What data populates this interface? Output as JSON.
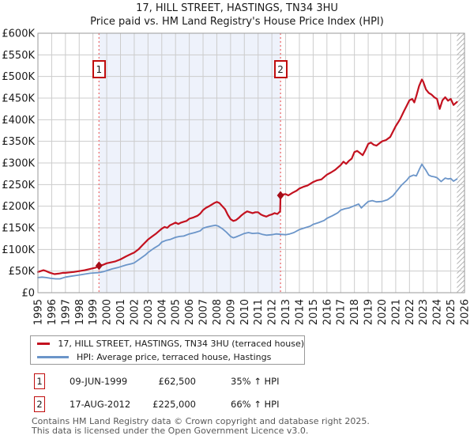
{
  "title": "17, HILL STREET, HASTINGS, TN34 3HU",
  "subtitle": "Price paid vs. HM Land Registry's House Price Index (HPI)",
  "legend": [
    {
      "label": "17, HILL STREET, HASTINGS, TN34 3HU (terraced house)",
      "color": "#c3111f"
    },
    {
      "label": "HPI: Average price, terraced house, Hastings",
      "color": "#6b95c9"
    }
  ],
  "transactions": [
    {
      "marker": "1",
      "date": "09-JUN-1999",
      "price": "£62,500",
      "hpi": "35% ↑ HPI"
    },
    {
      "marker": "2",
      "date": "17-AUG-2012",
      "price": "£225,000",
      "hpi": "66% ↑ HPI"
    }
  ],
  "footer": {
    "line1": "Contains HM Land Registry data © Crown copyright and database right 2025.",
    "line2": "This data is licensed under the Open Government Licence v3.0."
  },
  "chart_data": {
    "type": "line",
    "title": "17, HILL STREET, HASTINGS, TN34 3HU — Price paid vs. HPI",
    "x_range": [
      1995,
      2026
    ],
    "y_range": [
      0,
      600000
    ],
    "grid": true,
    "legend_position": "bottom",
    "x_ticks": [
      1995,
      1996,
      1997,
      1998,
      1999,
      2000,
      2001,
      2002,
      2003,
      2004,
      2005,
      2006,
      2007,
      2008,
      2009,
      2010,
      2011,
      2012,
      2013,
      2014,
      2015,
      2016,
      2017,
      2018,
      2019,
      2020,
      2021,
      2022,
      2023,
      2024,
      2025,
      2026
    ],
    "y_ticks": [
      [
        0,
        "£0"
      ],
      [
        50000,
        "£50K"
      ],
      [
        100000,
        "£100K"
      ],
      [
        150000,
        "£150K"
      ],
      [
        200000,
        "£200K"
      ],
      [
        250000,
        "£250K"
      ],
      [
        300000,
        "£300K"
      ],
      [
        350000,
        "£350K"
      ],
      [
        400000,
        "£400K"
      ],
      [
        450000,
        "£450K"
      ],
      [
        500000,
        "£500K"
      ],
      [
        550000,
        "£550K"
      ],
      [
        600000,
        "£600K"
      ]
    ],
    "shaded_span": [
      1999.44,
      2012.63
    ],
    "hatch_span": [
      2025.45,
      2026
    ],
    "colors": {
      "shade": "#eef2fb",
      "grid": "#cccccc",
      "border": "#9a9a9a",
      "dotted": "#f08080",
      "hatch": "#b5b5b5",
      "marker": "#a60d18"
    },
    "markers": [
      {
        "label": "1",
        "x": 1999.44,
        "y": 62500
      },
      {
        "label": "2",
        "x": 2012.63,
        "y": 225000
      }
    ],
    "series": [
      {
        "id": "price-paid-series",
        "name": "17, HILL STREET, HASTINGS, TN34 3HU (terraced house)",
        "color": "#c3111f",
        "width": 2.2,
        "points": [
          [
            1995.0,
            48000
          ],
          [
            1995.2,
            50000
          ],
          [
            1995.4,
            52000
          ],
          [
            1995.6,
            50000
          ],
          [
            1995.8,
            47000
          ],
          [
            1996.0,
            45000
          ],
          [
            1996.2,
            43000
          ],
          [
            1996.5,
            44000
          ],
          [
            1996.8,
            46000
          ],
          [
            1997.0,
            46000
          ],
          [
            1997.3,
            47000
          ],
          [
            1997.6,
            48000
          ],
          [
            1998.0,
            50000
          ],
          [
            1998.4,
            52000
          ],
          [
            1998.8,
            55000
          ],
          [
            1999.2,
            58000
          ],
          [
            1999.44,
            62500
          ],
          [
            1999.7,
            64000
          ],
          [
            2000.0,
            68000
          ],
          [
            2000.3,
            70000
          ],
          [
            2000.6,
            72000
          ],
          [
            2001.0,
            77000
          ],
          [
            2001.4,
            84000
          ],
          [
            2001.8,
            90000
          ],
          [
            2002.0,
            93000
          ],
          [
            2002.3,
            100000
          ],
          [
            2002.6,
            110000
          ],
          [
            2003.0,
            123000
          ],
          [
            2003.3,
            130000
          ],
          [
            2003.6,
            137000
          ],
          [
            2004.0,
            148000
          ],
          [
            2004.2,
            152000
          ],
          [
            2004.4,
            150000
          ],
          [
            2004.6,
            156000
          ],
          [
            2004.8,
            159000
          ],
          [
            2005.0,
            162000
          ],
          [
            2005.2,
            159000
          ],
          [
            2005.4,
            162000
          ],
          [
            2005.6,
            164000
          ],
          [
            2005.8,
            166000
          ],
          [
            2006.0,
            171000
          ],
          [
            2006.3,
            174000
          ],
          [
            2006.6,
            178000
          ],
          [
            2006.8,
            183000
          ],
          [
            2007.0,
            191000
          ],
          [
            2007.2,
            196000
          ],
          [
            2007.5,
            201000
          ],
          [
            2007.8,
            207000
          ],
          [
            2008.0,
            210000
          ],
          [
            2008.2,
            207000
          ],
          [
            2008.4,
            200000
          ],
          [
            2008.6,
            193000
          ],
          [
            2008.8,
            180000
          ],
          [
            2009.0,
            170000
          ],
          [
            2009.2,
            166000
          ],
          [
            2009.4,
            168000
          ],
          [
            2009.6,
            173000
          ],
          [
            2009.8,
            179000
          ],
          [
            2010.0,
            184000
          ],
          [
            2010.2,
            188000
          ],
          [
            2010.4,
            186000
          ],
          [
            2010.6,
            184000
          ],
          [
            2010.8,
            186000
          ],
          [
            2011.0,
            186000
          ],
          [
            2011.2,
            181000
          ],
          [
            2011.4,
            178000
          ],
          [
            2011.6,
            176000
          ],
          [
            2011.8,
            179000
          ],
          [
            2012.0,
            181000
          ],
          [
            2012.2,
            184000
          ],
          [
            2012.4,
            182000
          ],
          [
            2012.6,
            188000
          ],
          [
            2012.63,
            225000
          ],
          [
            2012.8,
            227000
          ],
          [
            2013.0,
            228000
          ],
          [
            2013.2,
            225000
          ],
          [
            2013.5,
            231000
          ],
          [
            2013.8,
            236000
          ],
          [
            2014.0,
            241000
          ],
          [
            2014.3,
            245000
          ],
          [
            2014.6,
            248000
          ],
          [
            2015.0,
            256000
          ],
          [
            2015.3,
            260000
          ],
          [
            2015.6,
            262000
          ],
          [
            2016.0,
            273000
          ],
          [
            2016.3,
            278000
          ],
          [
            2016.6,
            284000
          ],
          [
            2017.0,
            295000
          ],
          [
            2017.2,
            303000
          ],
          [
            2017.4,
            298000
          ],
          [
            2017.6,
            305000
          ],
          [
            2017.8,
            310000
          ],
          [
            2018.0,
            325000
          ],
          [
            2018.2,
            328000
          ],
          [
            2018.4,
            323000
          ],
          [
            2018.6,
            318000
          ],
          [
            2018.8,
            330000
          ],
          [
            2019.0,
            344000
          ],
          [
            2019.2,
            347000
          ],
          [
            2019.4,
            342000
          ],
          [
            2019.6,
            340000
          ],
          [
            2019.8,
            345000
          ],
          [
            2020.0,
            350000
          ],
          [
            2020.3,
            353000
          ],
          [
            2020.6,
            360000
          ],
          [
            2021.0,
            385000
          ],
          [
            2021.3,
            400000
          ],
          [
            2021.6,
            420000
          ],
          [
            2021.8,
            432000
          ],
          [
            2022.0,
            445000
          ],
          [
            2022.2,
            448000
          ],
          [
            2022.35,
            440000
          ],
          [
            2022.5,
            455000
          ],
          [
            2022.7,
            478000
          ],
          [
            2022.9,
            493000
          ],
          [
            2023.0,
            488000
          ],
          [
            2023.2,
            470000
          ],
          [
            2023.4,
            462000
          ],
          [
            2023.6,
            458000
          ],
          [
            2023.8,
            452000
          ],
          [
            2024.0,
            448000
          ],
          [
            2024.2,
            425000
          ],
          [
            2024.4,
            445000
          ],
          [
            2024.6,
            452000
          ],
          [
            2024.8,
            444000
          ],
          [
            2025.0,
            448000
          ],
          [
            2025.2,
            434000
          ],
          [
            2025.45,
            441000
          ]
        ]
      },
      {
        "id": "hpi-series",
        "name": "HPI: Average price, terraced house, Hastings",
        "color": "#6b95c9",
        "width": 1.8,
        "points": [
          [
            1995.0,
            35000
          ],
          [
            1995.3,
            36000
          ],
          [
            1995.6,
            35000
          ],
          [
            1996.0,
            33000
          ],
          [
            1996.3,
            32000
          ],
          [
            1996.6,
            32000
          ],
          [
            1997.0,
            36000
          ],
          [
            1997.4,
            38000
          ],
          [
            1997.8,
            40000
          ],
          [
            1998.0,
            41000
          ],
          [
            1998.4,
            43000
          ],
          [
            1998.8,
            45000
          ],
          [
            1999.2,
            46000
          ],
          [
            1999.44,
            46500
          ],
          [
            1999.8,
            49000
          ],
          [
            2000.0,
            51000
          ],
          [
            2000.4,
            55000
          ],
          [
            2000.8,
            58000
          ],
          [
            2001.0,
            60000
          ],
          [
            2001.4,
            64000
          ],
          [
            2001.8,
            67000
          ],
          [
            2002.0,
            69000
          ],
          [
            2002.4,
            78000
          ],
          [
            2002.8,
            87000
          ],
          [
            2003.0,
            93000
          ],
          [
            2003.4,
            102000
          ],
          [
            2003.8,
            110000
          ],
          [
            2004.0,
            117000
          ],
          [
            2004.3,
            121000
          ],
          [
            2004.6,
            123000
          ],
          [
            2005.0,
            128000
          ],
          [
            2005.3,
            130000
          ],
          [
            2005.6,
            131000
          ],
          [
            2006.0,
            136000
          ],
          [
            2006.4,
            139000
          ],
          [
            2006.8,
            143000
          ],
          [
            2007.0,
            149000
          ],
          [
            2007.3,
            152000
          ],
          [
            2007.6,
            154000
          ],
          [
            2007.9,
            156000
          ],
          [
            2008.1,
            154000
          ],
          [
            2008.4,
            148000
          ],
          [
            2008.7,
            140000
          ],
          [
            2009.0,
            130000
          ],
          [
            2009.2,
            127000
          ],
          [
            2009.4,
            129000
          ],
          [
            2009.7,
            133000
          ],
          [
            2010.0,
            137000
          ],
          [
            2010.3,
            139000
          ],
          [
            2010.6,
            137000
          ],
          [
            2011.0,
            138000
          ],
          [
            2011.3,
            135000
          ],
          [
            2011.6,
            133000
          ],
          [
            2012.0,
            134000
          ],
          [
            2012.3,
            136000
          ],
          [
            2012.63,
            135000
          ],
          [
            2013.0,
            134000
          ],
          [
            2013.3,
            136000
          ],
          [
            2013.6,
            139000
          ],
          [
            2014.0,
            146000
          ],
          [
            2014.4,
            150000
          ],
          [
            2014.8,
            154000
          ],
          [
            2015.0,
            158000
          ],
          [
            2015.4,
            162000
          ],
          [
            2015.8,
            167000
          ],
          [
            2016.0,
            172000
          ],
          [
            2016.4,
            178000
          ],
          [
            2016.8,
            185000
          ],
          [
            2017.0,
            191000
          ],
          [
            2017.3,
            194000
          ],
          [
            2017.6,
            196000
          ],
          [
            2018.0,
            201000
          ],
          [
            2018.3,
            205000
          ],
          [
            2018.5,
            196000
          ],
          [
            2018.8,
            205000
          ],
          [
            2019.0,
            211000
          ],
          [
            2019.3,
            213000
          ],
          [
            2019.6,
            210000
          ],
          [
            2020.0,
            211000
          ],
          [
            2020.4,
            215000
          ],
          [
            2020.8,
            224000
          ],
          [
            2021.0,
            232000
          ],
          [
            2021.4,
            248000
          ],
          [
            2021.8,
            260000
          ],
          [
            2022.0,
            268000
          ],
          [
            2022.3,
            272000
          ],
          [
            2022.5,
            270000
          ],
          [
            2022.7,
            284000
          ],
          [
            2022.9,
            297000
          ],
          [
            2023.05,
            290000
          ],
          [
            2023.2,
            283000
          ],
          [
            2023.4,
            272000
          ],
          [
            2023.6,
            269000
          ],
          [
            2023.8,
            268000
          ],
          [
            2024.0,
            266000
          ],
          [
            2024.3,
            257000
          ],
          [
            2024.6,
            265000
          ],
          [
            2024.8,
            263000
          ],
          [
            2025.0,
            264000
          ],
          [
            2025.2,
            258000
          ],
          [
            2025.45,
            263000
          ]
        ]
      }
    ]
  }
}
